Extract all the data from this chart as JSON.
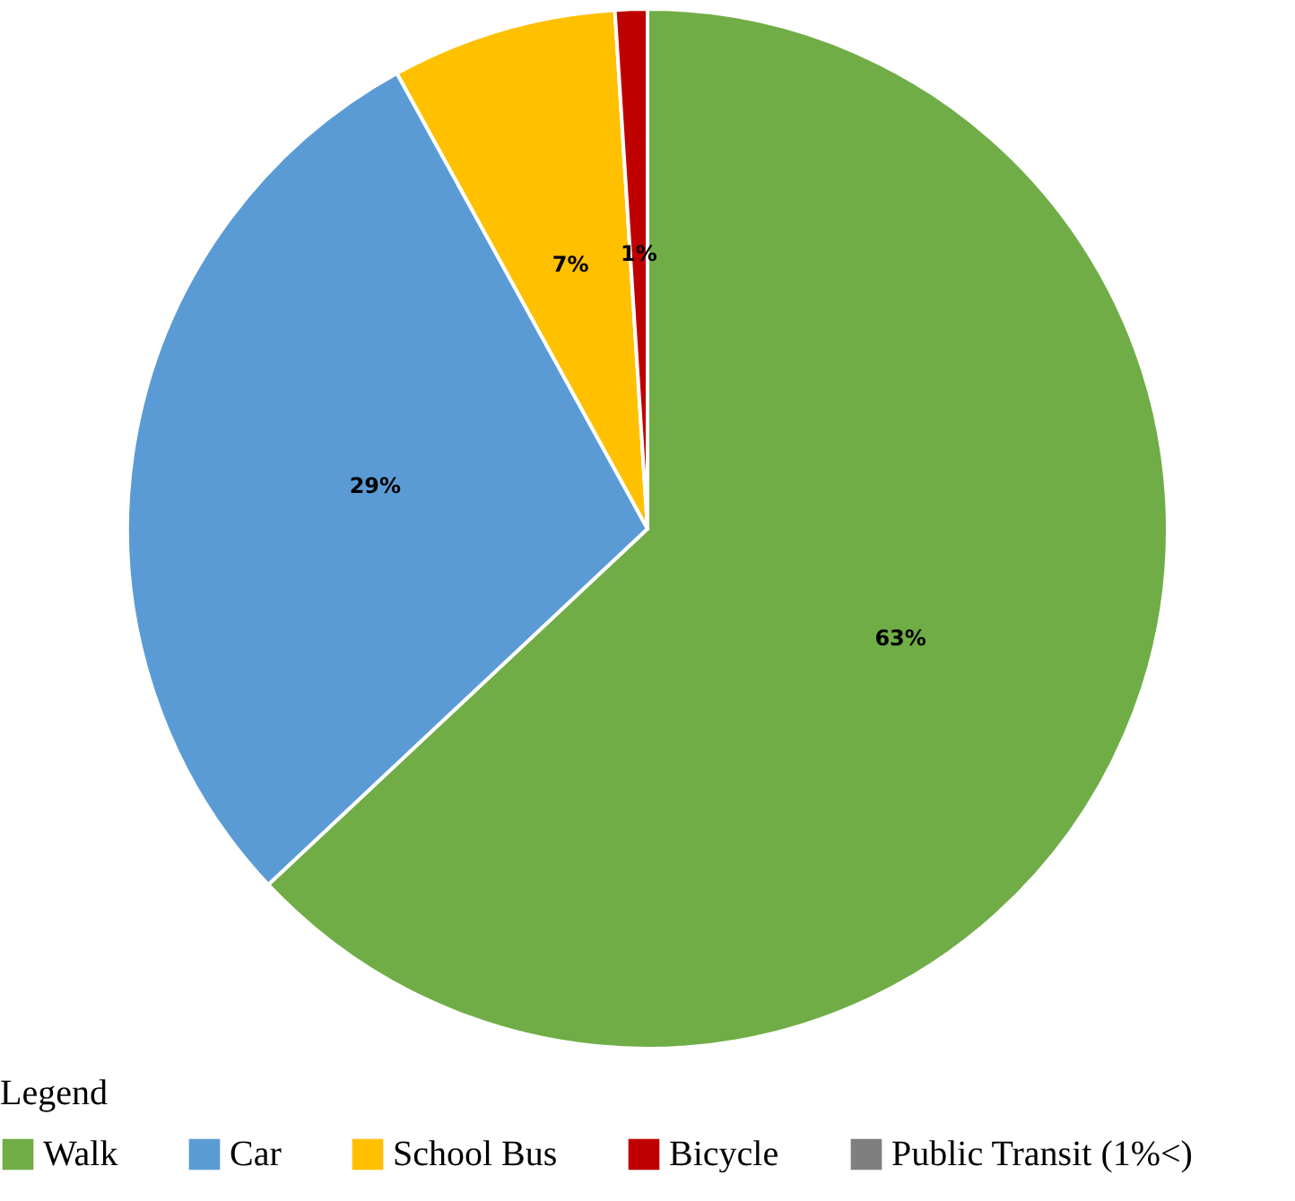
{
  "chart_data": {
    "type": "pie",
    "categories": [
      "Walk",
      "Car",
      "School Bus",
      "Bicycle",
      "Public Transit (1%<)"
    ],
    "values": [
      63,
      29,
      7,
      1,
      0
    ],
    "colors": [
      "#70ad47",
      "#5b9bd5",
      "#ffc000",
      "#c00000",
      "#7f7f7f"
    ],
    "value_labels": [
      "63%",
      "29%",
      "7%",
      "1%",
      null
    ],
    "legend_title": "Legend",
    "legend": "bottom left"
  }
}
